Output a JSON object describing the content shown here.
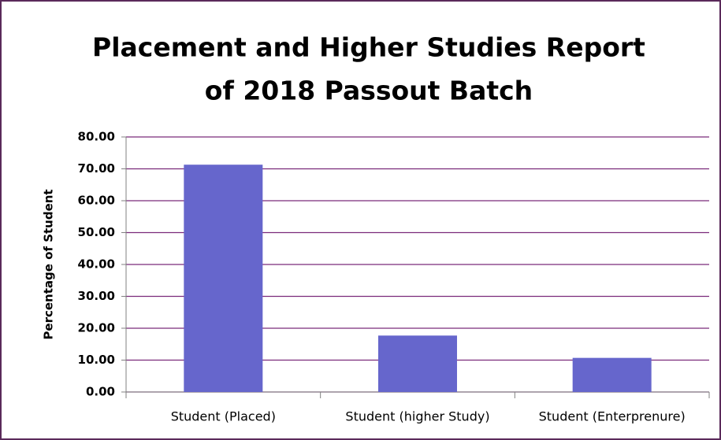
{
  "chart_data": {
    "type": "bar",
    "title": [
      "Placement and Higher Studies Report",
      "of 2018 Passout Batch"
    ],
    "y_label": "Percentage of Student",
    "categories": [
      "Student (Placed)",
      "Student (higher Study)",
      "Student (Enterprenure)"
    ],
    "values": [
      71.3,
      17.7,
      10.7
    ],
    "color": "#6666cc",
    "ylim": [
      0,
      80
    ],
    "yticks": [
      {
        "value": 0,
        "label": "0.00"
      },
      {
        "value": 10,
        "label": "10.00"
      },
      {
        "value": 20,
        "label": "20.00"
      },
      {
        "value": 30,
        "label": "30.00"
      },
      {
        "value": 40,
        "label": "40.00"
      },
      {
        "value": 50,
        "label": "50.00"
      },
      {
        "value": 60,
        "label": "60.00"
      },
      {
        "value": 70,
        "label": "70.00"
      },
      {
        "value": 80,
        "label": "80.00"
      }
    ],
    "grid": true
  }
}
